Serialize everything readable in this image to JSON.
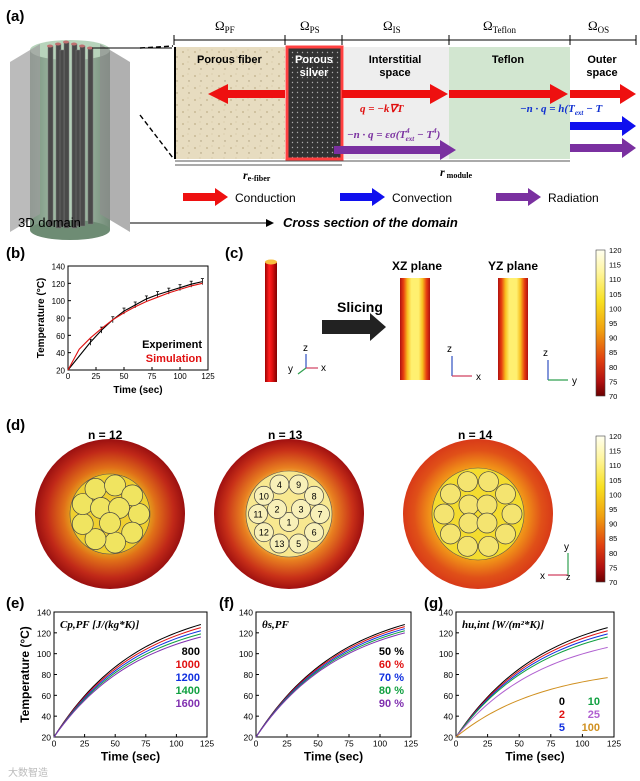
{
  "panels": {
    "a": "(a)",
    "b": "(b)",
    "c": "(c)",
    "d": "(d)",
    "e": "(e)",
    "f": "(f)",
    "g": "(g)"
  },
  "panel_a": {
    "domains": [
      {
        "sym": "Ω",
        "sub": "PF"
      },
      {
        "sym": "Ω",
        "sub": "PS"
      },
      {
        "sym": "Ω",
        "sub": "IS"
      },
      {
        "sym": "Ω",
        "sub": "Teflon"
      },
      {
        "sym": "Ω",
        "sub": "OS"
      }
    ],
    "regions": {
      "porous_fiber": "Porous fiber",
      "porous_silver": [
        "Porous",
        "silver"
      ],
      "interstitial": [
        "Interstitial",
        "space"
      ],
      "teflon": "Teflon",
      "outer": [
        "Outer",
        "space"
      ]
    },
    "eqs": {
      "conduction": "q = −k∇T",
      "radiation": "−n · q = εσ(T",
      "radiation_sup1": "4",
      "radiation_mid": "ext",
      "radiation_tail": " − T",
      "radiation_sup2": "4",
      "radiation_end": ")",
      "convection": "−n · q = h(T",
      "convection_sub": "ext",
      "convection_tail": " − T"
    },
    "r_efiber": {
      "r": "r",
      "sub": "e-fiber"
    },
    "r_module": {
      "r": "r",
      "sub": " module"
    },
    "legend": {
      "conduction": "Conduction",
      "convection": "Convection",
      "radiation": "Radiation"
    },
    "domain3d": "3D domain",
    "cross_section": "Cross section of the domain"
  },
  "panel_b": {
    "ylabel": "Temperature (°C)",
    "xlabel": "Time (sec)",
    "yticks": [
      "20",
      "40",
      "60",
      "80",
      "100",
      "120",
      "140"
    ],
    "xticks": [
      "0",
      "25",
      "50",
      "75",
      "100",
      "125"
    ],
    "legend_exp": "Experiment",
    "legend_sim": "Simulation"
  },
  "panel_c": {
    "slicing": "Slicing",
    "xz": "XZ plane",
    "yz": "YZ plane",
    "colorbar": [
      "120",
      "115",
      "110",
      "105",
      "100",
      "95",
      "90",
      "85",
      "80",
      "75",
      "70"
    ],
    "axes": {
      "x": "x",
      "y": "y",
      "z": "z"
    }
  },
  "panel_d": {
    "n12": "n = 12",
    "n13": "n = 13",
    "n14": "n = 14",
    "fiber_numbers": [
      "1",
      "2",
      "3",
      "4",
      "5",
      "6",
      "7",
      "8",
      "9",
      "10",
      "11",
      "12",
      "13"
    ],
    "colorbar": [
      "120",
      "115",
      "110",
      "105",
      "100",
      "95",
      "90",
      "85",
      "80",
      "75",
      "70"
    ],
    "axes": {
      "x": "x",
      "y": "y",
      "z": "z"
    }
  },
  "chart_data": [
    {
      "type": "line",
      "panel": "b",
      "xlabel": "Time (sec)",
      "ylabel": "Temperature (°C)",
      "xlim": [
        0,
        125
      ],
      "ylim": [
        20,
        140
      ],
      "series": [
        {
          "name": "Experiment",
          "color": "#000000",
          "x": [
            0,
            20,
            30,
            40,
            50,
            60,
            70,
            80,
            90,
            100,
            110,
            120
          ],
          "values": [
            20,
            52,
            66,
            78,
            88,
            95,
            102,
            107,
            111,
            115,
            119,
            122
          ]
        },
        {
          "name": "Simulation",
          "color": "#e01010",
          "x": [
            0,
            10,
            20,
            30,
            40,
            50,
            60,
            70,
            80,
            90,
            100,
            110,
            120
          ],
          "values": [
            20,
            44,
            57,
            68,
            78,
            86,
            93,
            99,
            104,
            109,
            113,
            117,
            120
          ]
        }
      ]
    },
    {
      "type": "line",
      "panel": "e",
      "title": "Cp,PF [J/(kg*K)]",
      "xlabel": "Time (sec)",
      "ylabel": "Temperature (°C)",
      "xlim": [
        0,
        125
      ],
      "ylim": [
        20,
        140
      ],
      "series": [
        {
          "name": "800",
          "color": "#000000",
          "final": 128
        },
        {
          "name": "1000",
          "color": "#e01010",
          "final": 125
        },
        {
          "name": "1200",
          "color": "#1030e0",
          "final": 122
        },
        {
          "name": "1400",
          "color": "#10a040",
          "final": 119
        },
        {
          "name": "1600",
          "color": "#8030b0",
          "final": 116
        }
      ]
    },
    {
      "type": "line",
      "panel": "f",
      "title": "θs,PF",
      "xlabel": "Time (sec)",
      "ylabel": "",
      "xlim": [
        0,
        125
      ],
      "ylim": [
        20,
        140
      ],
      "series": [
        {
          "name": "50 %",
          "color": "#000000",
          "final": 128
        },
        {
          "name": "60 %",
          "color": "#e01010",
          "final": 126
        },
        {
          "name": "70 %",
          "color": "#1030e0",
          "final": 124
        },
        {
          "name": "80 %",
          "color": "#10a040",
          "final": 122
        },
        {
          "name": "90 %",
          "color": "#8030b0",
          "final": 120
        }
      ]
    },
    {
      "type": "line",
      "panel": "g",
      "title": "hu,int [W/(m²*K)]",
      "xlabel": "Time (sec)",
      "ylabel": "",
      "xlim": [
        0,
        125
      ],
      "ylim": [
        20,
        140
      ],
      "series": [
        {
          "name": "0",
          "color": "#000000",
          "final": 125
        },
        {
          "name": "2",
          "color": "#e01010",
          "final": 122
        },
        {
          "name": "5",
          "color": "#1030e0",
          "final": 119
        },
        {
          "name": "10",
          "color": "#10a040",
          "final": 116
        },
        {
          "name": "25",
          "color": "#b060d0",
          "final": 106
        },
        {
          "name": "100",
          "color": "#d09020",
          "final": 77
        }
      ]
    }
  ],
  "watermark": "大数智造"
}
